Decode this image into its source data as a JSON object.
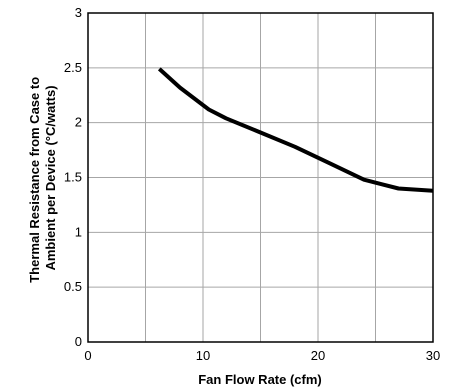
{
  "chart_data": {
    "type": "line",
    "xlabel": "Fan Flow Rate (cfm)",
    "ylabel_lines": [
      "Thermal Resistance from Case to",
      "Ambient per Device (°C/watts)"
    ],
    "xlim": [
      0,
      30
    ],
    "ylim": [
      0,
      3
    ],
    "x_ticks": [
      0,
      10,
      20,
      30
    ],
    "x_tick_labels": [
      "0",
      "10",
      "20",
      "30"
    ],
    "y_ticks": [
      0,
      0.5,
      1,
      1.5,
      2,
      2.5,
      3
    ],
    "y_tick_labels": [
      "0",
      "0.5",
      "1",
      "1.5",
      "2",
      "2.5",
      "3"
    ],
    "x_grid": [
      5,
      10,
      15,
      20,
      25
    ],
    "y_grid": [
      0.5,
      1,
      1.5,
      2,
      2.5
    ],
    "grid": true,
    "series": [
      {
        "x": [
          6.2,
          8,
          10.5,
          12,
          15,
          18,
          21,
          24,
          27,
          30
        ],
        "y": [
          2.49,
          2.32,
          2.12,
          2.04,
          1.91,
          1.78,
          1.63,
          1.48,
          1.4,
          1.38
        ],
        "color": "#000000"
      }
    ]
  }
}
